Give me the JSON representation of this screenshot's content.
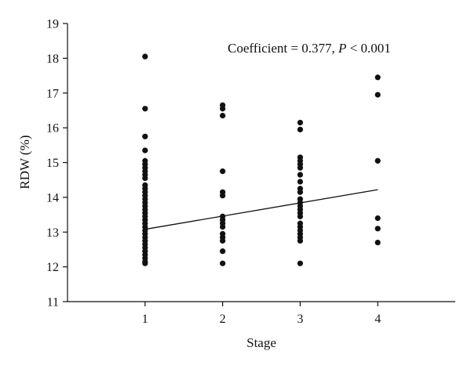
{
  "chart_data": {
    "type": "scatter",
    "xlabel": "Stage",
    "ylabel": "RDW (%)",
    "xlim": [
      0,
      5
    ],
    "ylim": [
      11,
      19
    ],
    "x_ticks": [
      1,
      2,
      3,
      4
    ],
    "y_ticks": [
      11,
      12,
      13,
      14,
      15,
      16,
      17,
      18,
      19
    ],
    "grid": false,
    "annotation": {
      "prefix": "Coefficient = 0.377, ",
      "p_symbol": "P",
      "suffix": " < 0.001"
    },
    "points": [
      {
        "x": 1,
        "y": 18.05
      },
      {
        "x": 1,
        "y": 16.55
      },
      {
        "x": 1,
        "y": 15.75
      },
      {
        "x": 1,
        "y": 15.35
      },
      {
        "x": 1,
        "y": 15.05
      },
      {
        "x": 1,
        "y": 14.95
      },
      {
        "x": 1,
        "y": 14.85
      },
      {
        "x": 1,
        "y": 14.75
      },
      {
        "x": 1,
        "y": 14.65
      },
      {
        "x": 1,
        "y": 14.55
      },
      {
        "x": 1,
        "y": 14.35
      },
      {
        "x": 1,
        "y": 14.25
      },
      {
        "x": 1,
        "y": 14.15
      },
      {
        "x": 1,
        "y": 14.05
      },
      {
        "x": 1,
        "y": 13.95
      },
      {
        "x": 1,
        "y": 13.85
      },
      {
        "x": 1,
        "y": 13.75
      },
      {
        "x": 1,
        "y": 13.65
      },
      {
        "x": 1,
        "y": 13.55
      },
      {
        "x": 1,
        "y": 13.45
      },
      {
        "x": 1,
        "y": 13.35
      },
      {
        "x": 1,
        "y": 13.25
      },
      {
        "x": 1,
        "y": 13.15
      },
      {
        "x": 1,
        "y": 13.05
      },
      {
        "x": 1,
        "y": 12.95
      },
      {
        "x": 1,
        "y": 12.85
      },
      {
        "x": 1,
        "y": 12.75
      },
      {
        "x": 1,
        "y": 12.65
      },
      {
        "x": 1,
        "y": 12.55
      },
      {
        "x": 1,
        "y": 12.45
      },
      {
        "x": 1,
        "y": 12.35
      },
      {
        "x": 1,
        "y": 12.25
      },
      {
        "x": 1,
        "y": 12.15
      },
      {
        "x": 1,
        "y": 12.1
      },
      {
        "x": 2,
        "y": 16.65
      },
      {
        "x": 2,
        "y": 16.55
      },
      {
        "x": 2,
        "y": 16.35
      },
      {
        "x": 2,
        "y": 14.75
      },
      {
        "x": 2,
        "y": 14.15
      },
      {
        "x": 2,
        "y": 14.05
      },
      {
        "x": 2,
        "y": 13.45
      },
      {
        "x": 2,
        "y": 13.35
      },
      {
        "x": 2,
        "y": 13.25
      },
      {
        "x": 2,
        "y": 13.15
      },
      {
        "x": 2,
        "y": 12.95
      },
      {
        "x": 2,
        "y": 12.85
      },
      {
        "x": 2,
        "y": 12.75
      },
      {
        "x": 2,
        "y": 12.45
      },
      {
        "x": 2,
        "y": 12.1
      },
      {
        "x": 3,
        "y": 16.15
      },
      {
        "x": 3,
        "y": 15.95
      },
      {
        "x": 3,
        "y": 15.15
      },
      {
        "x": 3,
        "y": 15.05
      },
      {
        "x": 3,
        "y": 14.95
      },
      {
        "x": 3,
        "y": 14.85
      },
      {
        "x": 3,
        "y": 14.65
      },
      {
        "x": 3,
        "y": 14.45
      },
      {
        "x": 3,
        "y": 14.25
      },
      {
        "x": 3,
        "y": 14.15
      },
      {
        "x": 3,
        "y": 13.95
      },
      {
        "x": 3,
        "y": 13.85
      },
      {
        "x": 3,
        "y": 13.75
      },
      {
        "x": 3,
        "y": 13.65
      },
      {
        "x": 3,
        "y": 13.55
      },
      {
        "x": 3,
        "y": 13.45
      },
      {
        "x": 3,
        "y": 13.25
      },
      {
        "x": 3,
        "y": 13.15
      },
      {
        "x": 3,
        "y": 13.05
      },
      {
        "x": 3,
        "y": 12.95
      },
      {
        "x": 3,
        "y": 12.85
      },
      {
        "x": 3,
        "y": 12.75
      },
      {
        "x": 3,
        "y": 12.1
      },
      {
        "x": 4,
        "y": 17.45
      },
      {
        "x": 4,
        "y": 16.95
      },
      {
        "x": 4,
        "y": 15.05
      },
      {
        "x": 4,
        "y": 13.4
      },
      {
        "x": 4,
        "y": 13.1
      },
      {
        "x": 4,
        "y": 12.7
      }
    ],
    "regression_line": {
      "x": [
        1,
        4
      ],
      "y": [
        13.08,
        14.22
      ]
    }
  }
}
